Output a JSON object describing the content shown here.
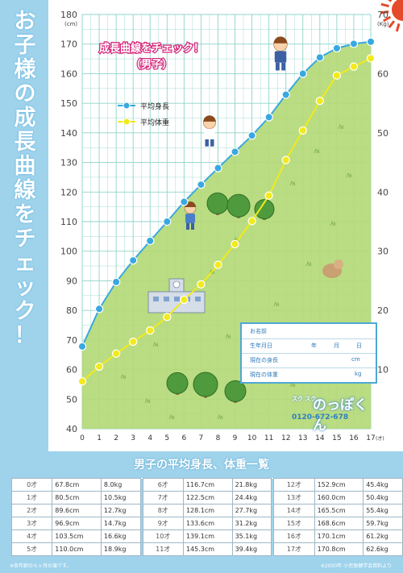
{
  "side_title": "お子様の成長曲線をチェック！",
  "chart_title_line1": "成長曲線をチェック！",
  "chart_title_line2": "（男子）",
  "colors": {
    "height_series": "#3aa8e0",
    "weight_series": "#f2ea1c",
    "grass": "#b4d977",
    "grid": "#8fd3c8",
    "panel_bg": "#9fd3ec",
    "table_border": "#9fb7c6"
  },
  "chart_data": {
    "type": "line",
    "x": [
      0,
      1,
      2,
      3,
      4,
      5,
      6,
      7,
      8,
      9,
      10,
      11,
      12,
      13,
      14,
      15,
      16,
      17
    ],
    "x_tick_labels": [
      "0",
      "1",
      "2",
      "3",
      "4",
      "5",
      "6",
      "7",
      "8",
      "9",
      "10",
      "11",
      "12",
      "13",
      "14",
      "15",
      "16",
      "17"
    ],
    "x_unit": "(才)",
    "y_left_unit": "(cm)",
    "y_left_range": [
      40,
      180
    ],
    "y_left_ticks": [
      "40",
      "50",
      "60",
      "70",
      "80",
      "90",
      "100",
      "110",
      "120",
      "130",
      "140",
      "150",
      "160",
      "170",
      "180"
    ],
    "y_right_unit": "(Kg)",
    "y_right_range": [
      0,
      70
    ],
    "y_right_ticks": [
      "10",
      "20",
      "30",
      "40",
      "50",
      "60",
      "70"
    ],
    "grid": true,
    "legend_position": "top-left",
    "series": [
      {
        "name": "平均身長",
        "axis": "left",
        "values": [
          67.8,
          80.5,
          89.6,
          96.9,
          103.5,
          110.0,
          116.7,
          122.5,
          128.1,
          133.6,
          139.1,
          145.3,
          152.9,
          160.0,
          165.5,
          168.6,
          170.1,
          170.8
        ]
      },
      {
        "name": "平均体重",
        "axis": "right",
        "values": [
          8.0,
          10.5,
          12.7,
          14.7,
          16.6,
          18.9,
          21.8,
          24.4,
          27.7,
          31.2,
          35.1,
          39.4,
          45.4,
          50.4,
          55.4,
          59.7,
          61.2,
          62.6
        ]
      }
    ]
  },
  "info_box": {
    "name_label": "お名前",
    "birth_label": "生年月日",
    "birth_year": "年",
    "birth_month": "月",
    "birth_day": "日",
    "height_label": "現在の身長",
    "height_unit": "cm",
    "weight_label": "現在の体重",
    "weight_unit": "kg"
  },
  "brand": {
    "small": "スク スク",
    "name": "のっぽくん",
    "phone": "0120-672-678"
  },
  "table": {
    "title": "男子の平均身長、体重一覧",
    "rows": [
      [
        {
          "age": "0才",
          "height": "67.8cm",
          "weight": "8.0kg"
        },
        {
          "age": "6才",
          "height": "116.7cm",
          "weight": "21.8kg"
        },
        {
          "age": "12才",
          "height": "152.9cm",
          "weight": "45.4kg"
        }
      ],
      [
        {
          "age": "1才",
          "height": "80.5cm",
          "weight": "10.5kg"
        },
        {
          "age": "7才",
          "height": "122.5cm",
          "weight": "24.4kg"
        },
        {
          "age": "13才",
          "height": "160.0cm",
          "weight": "50.4kg"
        }
      ],
      [
        {
          "age": "2才",
          "height": "89.6cm",
          "weight": "12.7kg"
        },
        {
          "age": "8才",
          "height": "128.1cm",
          "weight": "27.7kg"
        },
        {
          "age": "14才",
          "height": "165.5cm",
          "weight": "55.4kg"
        }
      ],
      [
        {
          "age": "3才",
          "height": "96.9cm",
          "weight": "14.7kg"
        },
        {
          "age": "9才",
          "height": "133.6cm",
          "weight": "31.2kg"
        },
        {
          "age": "15才",
          "height": "168.6cm",
          "weight": "59.7kg"
        }
      ],
      [
        {
          "age": "4才",
          "height": "103.5cm",
          "weight": "16.6kg"
        },
        {
          "age": "10才",
          "height": "139.1cm",
          "weight": "35.1kg"
        },
        {
          "age": "16才",
          "height": "170.1cm",
          "weight": "61.2kg"
        }
      ],
      [
        {
          "age": "5才",
          "height": "110.0cm",
          "weight": "18.9kg"
        },
        {
          "age": "11才",
          "height": "145.3cm",
          "weight": "39.4kg"
        },
        {
          "age": "17才",
          "height": "170.8cm",
          "weight": "62.6kg"
        }
      ]
    ]
  },
  "note_left": "※各年齢の６ヶ月の値です。",
  "note_right": "※2000年 小児保健学会資料より"
}
